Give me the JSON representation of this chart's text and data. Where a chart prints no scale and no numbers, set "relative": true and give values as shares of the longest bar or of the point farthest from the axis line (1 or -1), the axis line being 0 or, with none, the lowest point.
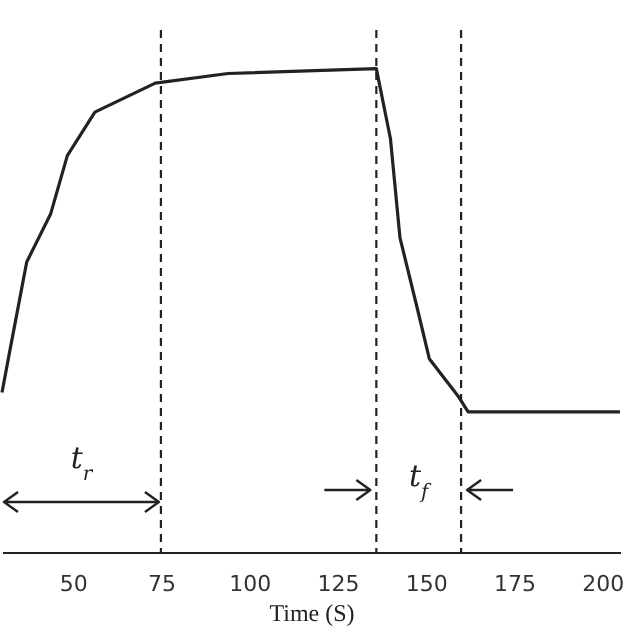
{
  "chart_data": {
    "type": "line",
    "relative": true,
    "xlabel": "Time (S)",
    "xlim": [
      30,
      205
    ],
    "xticks": [
      50,
      75,
      100,
      125,
      150,
      175,
      200
    ],
    "series": [
      {
        "color": "#222222",
        "x": [
          30,
          31.8,
          37,
          43.8,
          48.5,
          56.3,
          73.4,
          94,
          136,
          140,
          142.7,
          147.4,
          151,
          159.4,
          162,
          205
        ],
        "values": [
          0.33,
          0.4,
          0.6,
          0.7,
          0.82,
          0.91,
          0.97,
          0.99,
          1.0,
          0.855,
          0.65,
          0.51,
          0.4,
          0.32,
          0.29,
          0.29
        ]
      }
    ],
    "ref_lines": [
      {
        "axis": "x",
        "value": 75,
        "line_style": "dashed"
      },
      {
        "axis": "x",
        "value": 136,
        "line_style": "dashed"
      },
      {
        "axis": "x",
        "value": 160,
        "line_style": "dashed"
      }
    ],
    "annotations": [
      "t$_{r}$",
      "t$_{f}$"
    ],
    "grid": false,
    "marker": "none",
    "line_style": "solid"
  }
}
